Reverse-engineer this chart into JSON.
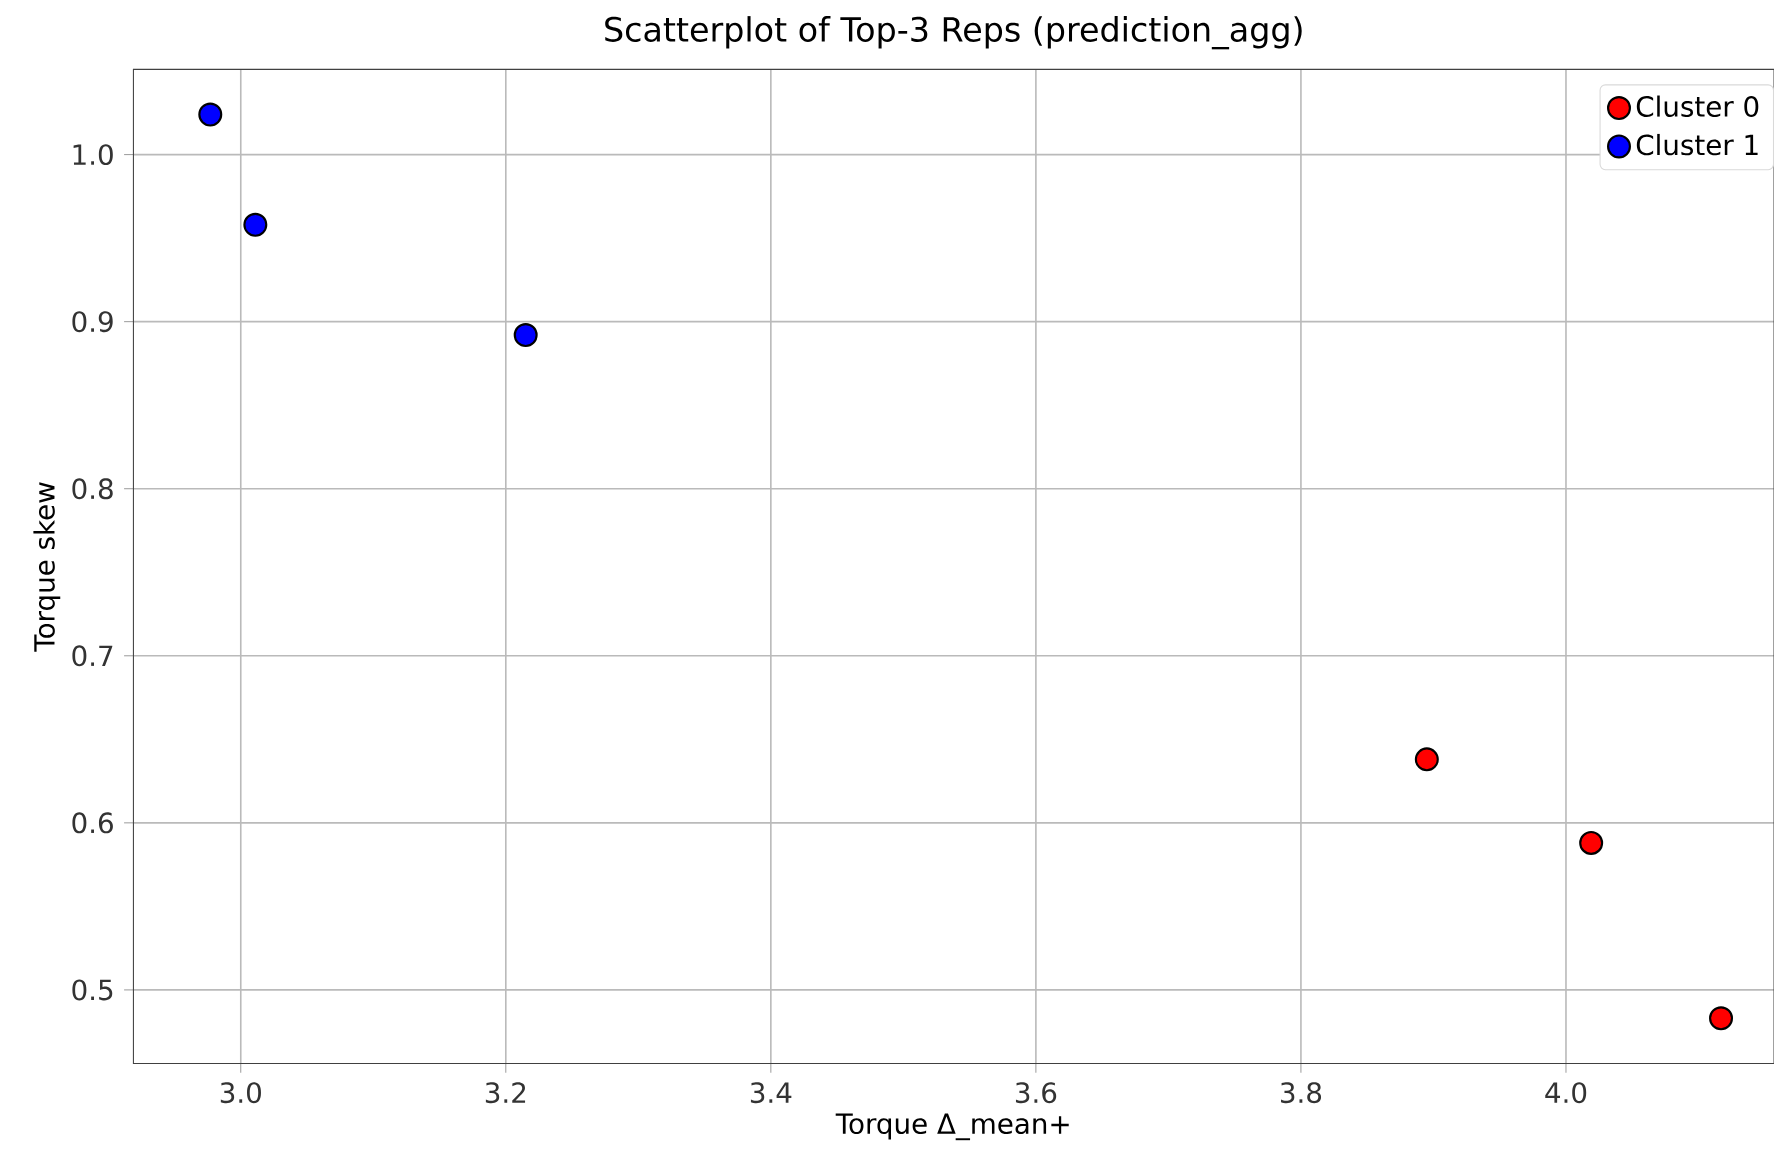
{
  "chart_data": {
    "type": "scatter",
    "title": "Scatterplot of Top-3 Reps (prediction_agg)",
    "xlabel": "Torque Δ_mean+",
    "ylabel": "Torque skew",
    "xlim": [
      2.919,
      4.157
    ],
    "ylim": [
      0.456,
      1.051
    ],
    "xticks": [
      {
        "value": 3,
        "label": "3.0"
      },
      3.2,
      3.4,
      3.6,
      3.8,
      {
        "value": 4,
        "label": "4.0"
      }
    ],
    "yticks": [
      0.5,
      0.6,
      0.7,
      0.8,
      0.9,
      {
        "value": 1,
        "label": "1.0"
      }
    ],
    "grid": true,
    "legend": "top right",
    "marker": "circle",
    "series": [
      {
        "name": "Cluster 0",
        "color": "#ff0000",
        "x": [
          3.895,
          4.019,
          4.117
        ],
        "values": [
          0.638,
          0.588,
          0.483
        ]
      },
      {
        "name": "Cluster 1",
        "color": "#0000ff",
        "x": [
          2.977,
          3.011,
          3.215
        ],
        "values": [
          1.024,
          0.958,
          0.892
        ]
      }
    ]
  }
}
